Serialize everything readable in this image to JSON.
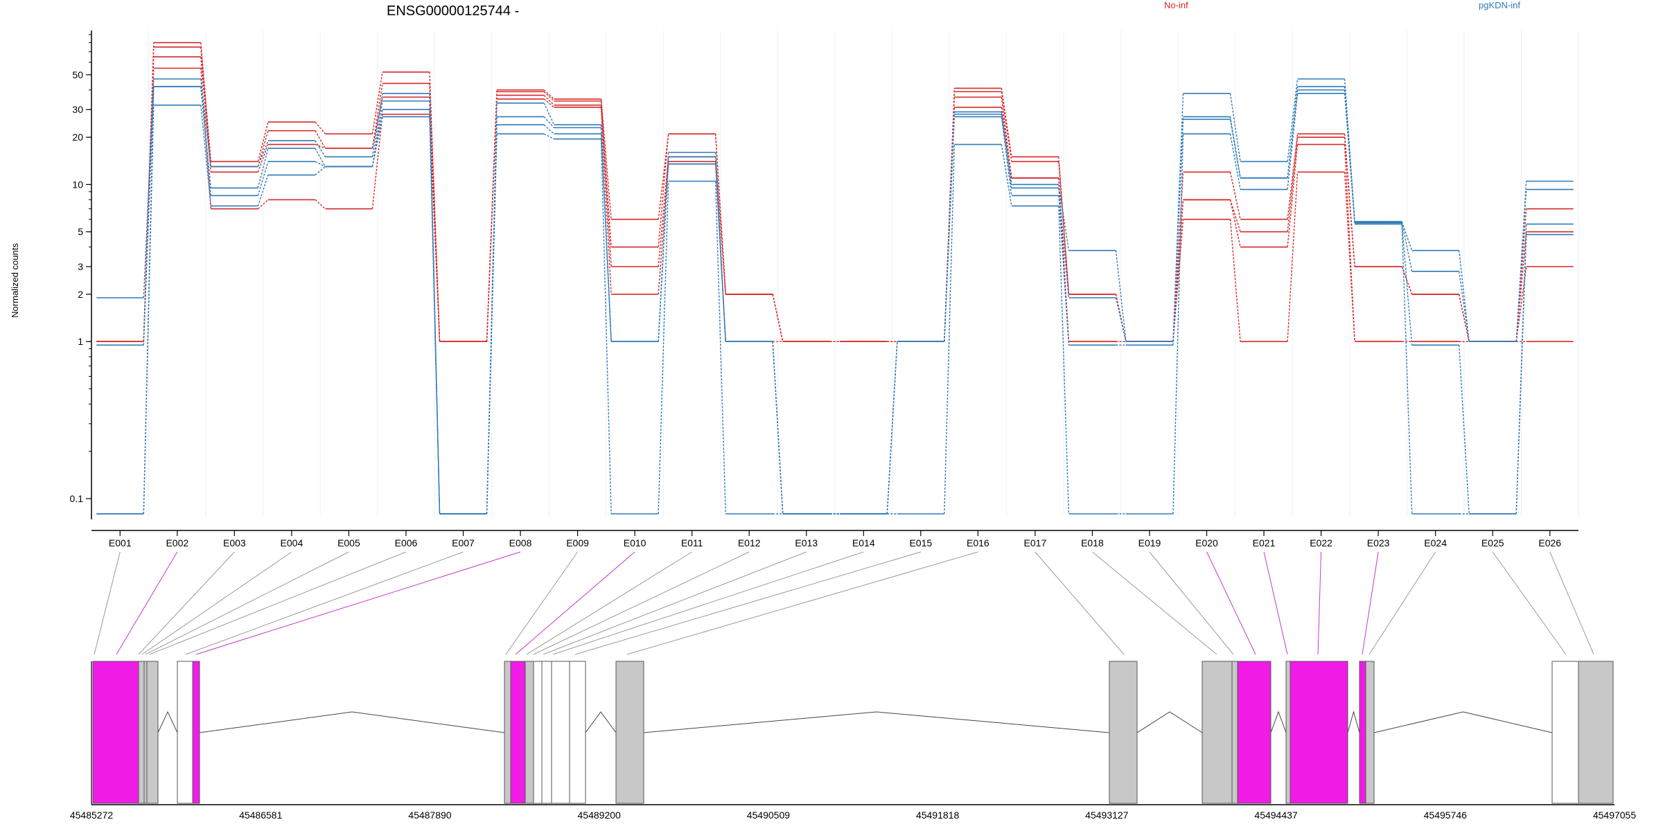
{
  "chart_data": {
    "type": "line",
    "title": "ENSG00000125744 -",
    "ylabel": "Normalized counts",
    "yscale": "log",
    "ylim": [
      0.08,
      90
    ],
    "yticks": [
      0.1,
      1,
      2,
      3,
      5,
      10,
      20,
      30,
      50
    ],
    "ytick_labels": [
      "0.1",
      "1",
      "2",
      "3",
      "5",
      "10",
      "20",
      "30",
      "50"
    ],
    "categories": [
      "E001",
      "E002",
      "E003",
      "E004",
      "E005",
      "E006",
      "E007",
      "E008",
      "E009",
      "E010",
      "E011",
      "E012",
      "E013",
      "E014",
      "E015",
      "E016",
      "E017",
      "E018",
      "E019",
      "E020",
      "E021",
      "E022",
      "E023",
      "E024",
      "E025",
      "E026"
    ],
    "legend": [
      {
        "name": "No-inf",
        "color": "#d62728"
      },
      {
        "name": "pgKDN-inf",
        "color": "#2e7ab8"
      }
    ],
    "series": [
      {
        "group": "No-inf",
        "values": [
          1,
          80,
          14,
          25,
          21,
          52,
          1,
          40,
          35,
          6,
          21,
          2,
          1,
          1,
          1,
          41,
          15,
          2,
          1,
          12,
          6,
          21,
          3,
          2,
          1,
          7
        ]
      },
      {
        "group": "No-inf",
        "values": [
          1,
          75,
          13,
          22,
          17,
          44,
          1,
          39,
          34,
          4,
          21,
          2,
          1,
          1,
          1,
          39,
          14,
          2,
          1,
          8,
          5,
          20,
          3,
          2,
          1,
          5
        ]
      },
      {
        "group": "No-inf",
        "values": [
          1,
          65,
          12,
          18,
          17,
          36,
          1,
          37,
          32,
          3,
          15,
          2,
          1,
          1,
          1,
          36,
          11,
          1,
          1,
          8,
          4,
          18,
          1,
          1,
          1,
          3
        ]
      },
      {
        "group": "No-inf",
        "values": [
          1,
          55,
          7,
          8,
          7,
          28,
          1,
          35,
          31,
          2,
          14,
          1,
          1,
          1,
          1,
          31,
          11,
          1,
          1,
          6,
          1,
          12,
          1,
          1,
          1,
          1
        ]
      },
      {
        "group": "pgKDN-inf",
        "values": [
          1.9,
          47,
          13,
          19,
          15,
          38,
          0.08,
          33,
          24,
          1,
          16,
          1,
          0.08,
          0.08,
          1,
          29,
          10,
          3.8,
          1,
          38,
          14,
          47,
          5.8,
          3.8,
          1,
          10.5
        ]
      },
      {
        "group": "pgKDN-inf",
        "values": [
          0.95,
          42,
          9.5,
          17,
          13,
          34,
          0.08,
          27,
          23,
          1,
          15,
          1,
          0.08,
          0.08,
          1,
          28,
          9.5,
          1.9,
          1,
          27,
          11,
          42,
          5.8,
          2.8,
          1,
          9.3
        ]
      },
      {
        "group": "pgKDN-inf",
        "values": [
          0.08,
          42,
          8.5,
          14,
          13,
          30,
          0.08,
          24,
          21,
          1,
          13.5,
          1,
          0.08,
          0.08,
          1,
          27,
          8.5,
          0.95,
          0.95,
          26,
          11,
          40,
          5.7,
          0.95,
          0.08,
          5.6
        ]
      },
      {
        "group": "pgKDN-inf",
        "values": [
          0.08,
          32,
          7.3,
          11.5,
          13,
          27,
          0.08,
          21,
          19.5,
          0.08,
          10.5,
          0.08,
          0.08,
          0.08,
          0.08,
          18,
          7.3,
          0.08,
          0.08,
          21,
          9.3,
          38,
          5.6,
          0.08,
          0.08,
          4.8
        ]
      }
    ],
    "gene_model": {
      "coordinate_ticks": [
        "45485272",
        "45486581",
        "45487890",
        "45489200",
        "45490509",
        "45491818",
        "45493127",
        "45494437",
        "45495746",
        "45497055"
      ],
      "exon_flags": [
        "gray",
        "magenta",
        "gray",
        "gray",
        "gray",
        "gray",
        "gray",
        "magenta",
        "gray",
        "magenta",
        "gray",
        "gray",
        "gray",
        "gray",
        "gray",
        "gray",
        "gray",
        "gray",
        "gray",
        "magenta",
        "magenta",
        "magenta",
        "magenta",
        "gray",
        "gray",
        "gray"
      ],
      "colors": {
        "significant": "#f01ce6",
        "normal": "#c8c8c8",
        "outline": "#555555"
      }
    }
  }
}
